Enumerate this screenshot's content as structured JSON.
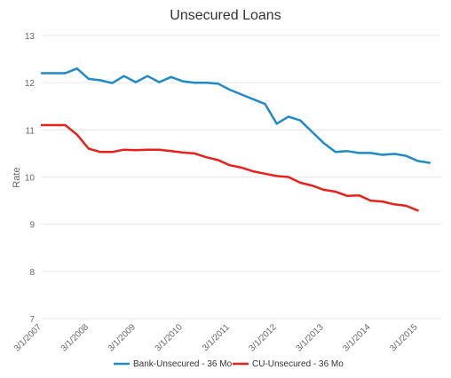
{
  "chart_data": {
    "type": "line",
    "title": "Unsecured Loans",
    "xlabel": "",
    "ylabel": "Rate",
    "ylim": [
      7,
      13
    ],
    "yticks": [
      7,
      8,
      9,
      10,
      11,
      12,
      13
    ],
    "grid": true,
    "legend_position": "bottom",
    "x_start": "3/1/2007",
    "x_tick_labels": [
      "3/1/2007",
      "3/1/2008",
      "3/1/2009",
      "3/1/2010",
      "3/1/2011",
      "3/1/2012",
      "3/1/2013",
      "3/1/2014",
      "3/1/2015"
    ],
    "x_count": 35,
    "series": [
      {
        "name": "Bank-Unsecured - 36 Mo",
        "color": "#1f8ac9",
        "values": [
          12.2,
          12.2,
          12.2,
          12.3,
          12.08,
          12.05,
          11.99,
          12.14,
          12.01,
          12.14,
          12.01,
          12.12,
          12.03,
          12.0,
          12.0,
          11.98,
          11.85,
          11.75,
          11.65,
          11.55,
          11.13,
          11.28,
          11.2,
          10.96,
          10.72,
          10.53,
          10.55,
          10.51,
          10.51,
          10.47,
          10.49,
          10.45,
          10.34,
          10.3,
          null
        ]
      },
      {
        "name": "CU-Unsecured - 36 Mo",
        "color": "#e8211a",
        "values": [
          11.1,
          11.1,
          11.1,
          10.9,
          10.6,
          10.53,
          10.53,
          10.58,
          10.57,
          10.58,
          10.58,
          10.55,
          10.52,
          10.5,
          10.42,
          10.36,
          10.25,
          10.2,
          10.12,
          10.07,
          10.02,
          10.0,
          9.88,
          9.82,
          9.73,
          9.69,
          9.6,
          9.61,
          9.5,
          9.48,
          9.42,
          9.39,
          9.29,
          null,
          null
        ]
      }
    ]
  }
}
